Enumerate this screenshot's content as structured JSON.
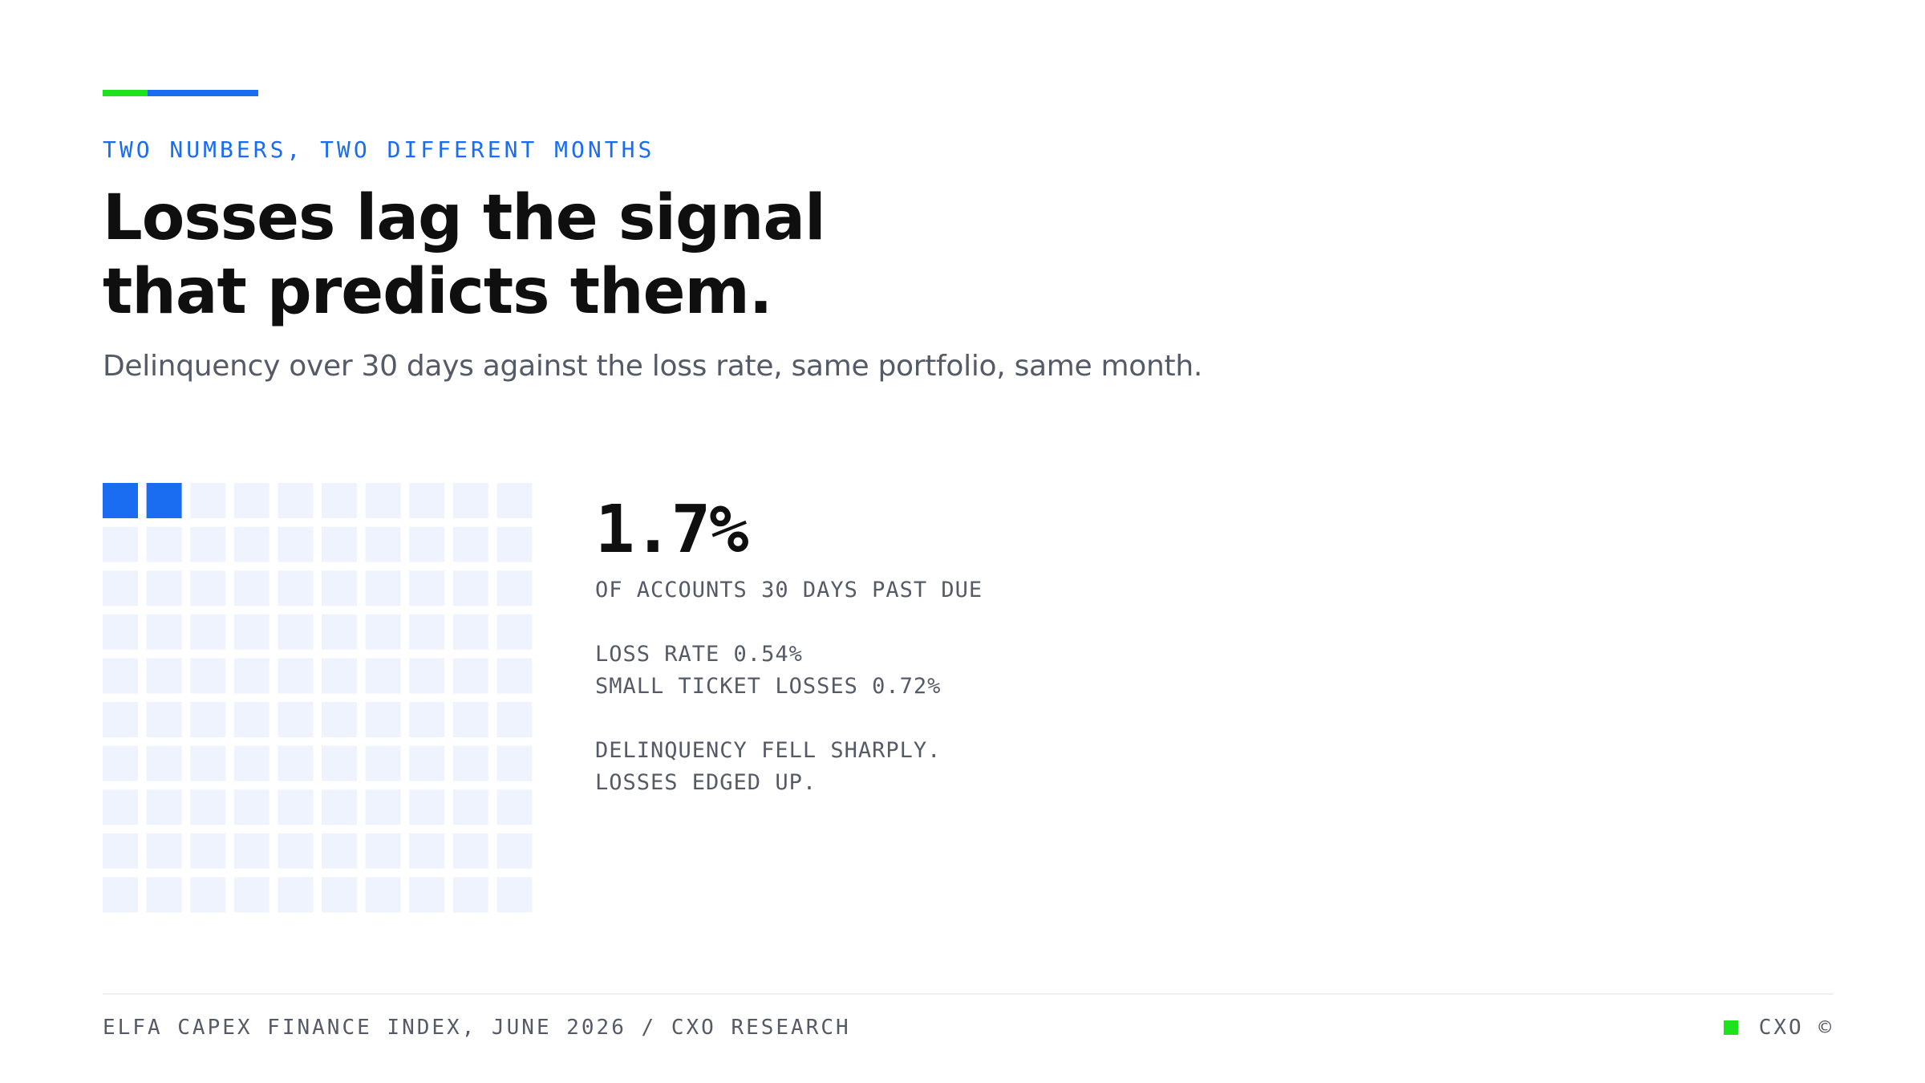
{
  "eyebrow": "TWO NUMBERS, TWO DIFFERENT MONTHS",
  "title": {
    "line1": "Losses lag the signal",
    "line2": "that predicts them."
  },
  "subtitle": "Delinquency over 30 days against the loss rate, same portfolio, same month.",
  "colors": {
    "accent_green": "#1ee21e",
    "accent_blue": "#1a6cf0",
    "cell_filled": "#1a6cf0",
    "cell_empty": "#eef3fd",
    "text_primary": "#0f0f10",
    "text_secondary": "#555b66"
  },
  "chart_data": {
    "type": "waffle",
    "grid": {
      "rows": 10,
      "cols": 10
    },
    "total_cells": 100,
    "value_percent": 1.7,
    "filled_cells": 2
  },
  "stats": {
    "big_number": "1.7%",
    "big_label": "OF ACCOUNTS 30 DAYS PAST DUE",
    "loss_rate": "LOSS RATE 0.54%",
    "small_ticket": "SMALL TICKET LOSSES 0.72%",
    "note_line1": "DELINQUENCY FELL SHARPLY.",
    "note_line2": "LOSSES EDGED UP."
  },
  "footer": {
    "source": "ELFA CAPEX FINANCE INDEX, JUNE 2026 / CXO RESEARCH",
    "brand": "CXO ©"
  }
}
